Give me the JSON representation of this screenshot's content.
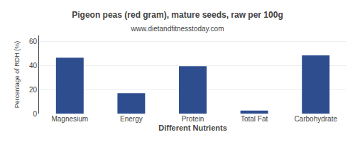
{
  "chart_data": {
    "type": "bar",
    "title": "Pigeon peas (red gram), mature seeds, raw per 100g",
    "subtitle": "www.dietandfitnesstoday.com",
    "categories": [
      "Magnesium",
      "Energy",
      "Protein",
      "Total Fat",
      "Carbohydrate"
    ],
    "values": [
      46.5,
      17.0,
      39.5,
      2.5,
      48.5
    ],
    "color": "#2e4d8f",
    "xlabel": "Different Nutrients",
    "ylabel": "Percentage of RDH (%)",
    "ylim": [
      0,
      65
    ],
    "yticks": [
      0,
      20,
      40,
      60
    ],
    "grid": true
  }
}
